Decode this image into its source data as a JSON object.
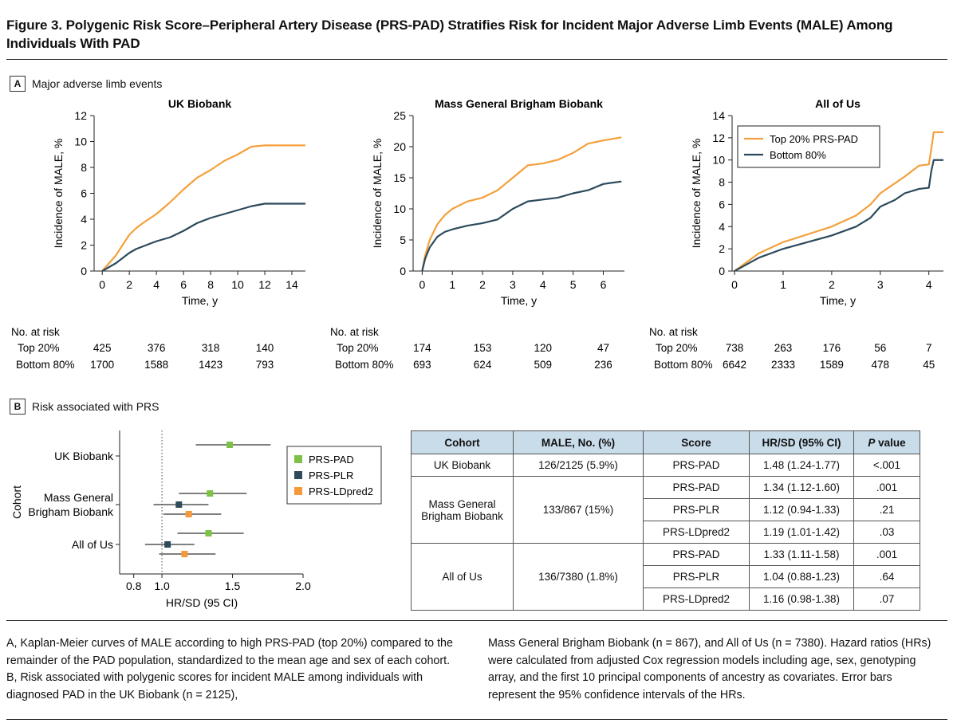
{
  "figure_title": "Figure 3. Polygenic Risk Score–Peripheral Artery Disease (PRS-PAD) Stratifies Risk for Incident Major Adverse Limb Events (MALE) Among Individuals With PAD",
  "panel_a": {
    "letter": "A",
    "title": "Major adverse limb events"
  },
  "panel_b": {
    "letter": "B",
    "title": "Risk associated with PRS"
  },
  "colors": {
    "top": "#f4a03c",
    "bottom": "#2c4a5c",
    "prs_pad": "#7dc246",
    "prs_plr": "#2f4b5b",
    "prs_ldpred2": "#f4983a",
    "table_header": "#c9dcea"
  },
  "chart_data": [
    {
      "type": "line",
      "title": "UK Biobank",
      "xlabel": "Time, y",
      "ylabel": "Incidence of MALE, %",
      "xlim": [
        -0.6,
        15
      ],
      "ylim": [
        0,
        12
      ],
      "xticks": [
        0,
        2,
        4,
        6,
        8,
        10,
        12,
        14
      ],
      "yticks": [
        0,
        2,
        4,
        6,
        8,
        10,
        12
      ],
      "legend": "",
      "series": [
        {
          "name": "Top 20% PRS-PAD",
          "x": [
            0,
            0.5,
            1,
            1.5,
            2,
            2.5,
            3,
            4,
            5,
            6,
            7,
            8,
            9,
            10,
            11,
            12,
            15
          ],
          "y": [
            0,
            0.6,
            1.2,
            2.0,
            2.8,
            3.3,
            3.7,
            4.4,
            5.3,
            6.3,
            7.2,
            7.8,
            8.5,
            9.0,
            9.6,
            9.7,
            9.7
          ]
        },
        {
          "name": "Bottom 80%",
          "x": [
            0,
            0.5,
            1,
            1.5,
            2,
            2.5,
            3,
            4,
            5,
            6,
            7,
            8,
            9,
            10,
            11,
            12,
            15
          ],
          "y": [
            0,
            0.3,
            0.6,
            1.0,
            1.4,
            1.7,
            1.9,
            2.3,
            2.6,
            3.1,
            3.7,
            4.1,
            4.4,
            4.7,
            5.0,
            5.2,
            5.2
          ]
        }
      ],
      "risk_table": {
        "header": "No. at risk",
        "rows": [
          {
            "label": "Top 20%",
            "values": [
              "425",
              "376",
              "318",
              "140"
            ]
          },
          {
            "label": "Bottom 80%",
            "values": [
              "1700",
              "1588",
              "1423",
              "793"
            ]
          }
        ],
        "at_times": [
          0,
          4,
          8,
          12
        ]
      }
    },
    {
      "type": "line",
      "title": "Mass General Brigham Biobank",
      "xlabel": "Time, y",
      "ylabel": "Incidence of MALE, %",
      "xlim": [
        -0.3,
        6.7
      ],
      "ylim": [
        0,
        25
      ],
      "xticks": [
        0,
        1,
        2,
        3,
        4,
        5,
        6
      ],
      "yticks": [
        0,
        5,
        10,
        15,
        20,
        25
      ],
      "legend": "",
      "series": [
        {
          "name": "Top 20% PRS-PAD",
          "x": [
            0,
            0.1,
            0.25,
            0.5,
            0.75,
            1,
            1.5,
            2,
            2.5,
            3,
            3.5,
            4,
            4.5,
            5,
            5.5,
            6,
            6.6
          ],
          "y": [
            0,
            2.5,
            5,
            7.5,
            9,
            10,
            11.2,
            11.8,
            13,
            15,
            17,
            17.3,
            17.9,
            19,
            20.5,
            21,
            21.5
          ]
        },
        {
          "name": "Bottom 80%",
          "x": [
            0,
            0.1,
            0.25,
            0.5,
            0.75,
            1,
            1.5,
            2,
            2.5,
            3,
            3.5,
            4,
            4.5,
            5,
            5.5,
            6,
            6.6
          ],
          "y": [
            0,
            2,
            3.8,
            5.5,
            6.3,
            6.7,
            7.3,
            7.7,
            8.3,
            10,
            11.2,
            11.5,
            11.8,
            12.5,
            13,
            14,
            14.4
          ]
        }
      ],
      "risk_table": {
        "header": "No. at risk",
        "rows": [
          {
            "label": "Top 20%",
            "values": [
              "174",
              "153",
              "120",
              "47"
            ]
          },
          {
            "label": "Bottom 80%",
            "values": [
              "693",
              "624",
              "509",
              "236"
            ]
          }
        ],
        "at_times": [
          0,
          2,
          4,
          6
        ]
      }
    },
    {
      "type": "line",
      "title": "All of Us",
      "xlabel": "Time, y",
      "ylabel": "Incidence of MALE, %",
      "xlim": [
        -0.05,
        4.3
      ],
      "ylim": [
        0,
        14
      ],
      "xticks": [
        0,
        1,
        2,
        3,
        4
      ],
      "yticks": [
        0,
        2,
        4,
        6,
        8,
        10,
        12,
        14
      ],
      "legend": "top-left",
      "series": [
        {
          "name": "Top 20% PRS-PAD",
          "x": [
            0,
            0.5,
            1,
            1.5,
            2,
            2.5,
            2.8,
            3,
            3.3,
            3.5,
            3.8,
            4.0,
            4.05,
            4.1,
            4.3
          ],
          "y": [
            0,
            1.6,
            2.6,
            3.3,
            4.0,
            5.0,
            6.0,
            7.0,
            7.9,
            8.5,
            9.5,
            9.6,
            11,
            12.5,
            12.5
          ]
        },
        {
          "name": "Bottom 80%",
          "x": [
            0,
            0.5,
            1,
            1.5,
            2,
            2.5,
            2.8,
            3,
            3.3,
            3.5,
            3.8,
            4.0,
            4.05,
            4.1,
            4.3
          ],
          "y": [
            0,
            1.2,
            2.0,
            2.6,
            3.2,
            4.0,
            4.8,
            5.8,
            6.4,
            7.0,
            7.4,
            7.5,
            9,
            10,
            10
          ]
        }
      ],
      "risk_table": {
        "header": "No. at risk",
        "rows": [
          {
            "label": "Top 20%",
            "values": [
              "738",
              "263",
              "176",
              "56",
              "7"
            ]
          },
          {
            "label": "Bottom 80%",
            "values": [
              "6642",
              "2333",
              "1589",
              "478",
              "45"
            ]
          }
        ],
        "at_times": [
          0,
          1,
          2,
          3,
          4
        ]
      }
    },
    {
      "type": "scatter",
      "subtype": "forest",
      "title": "",
      "xlabel": "HR/SD (95 CI)",
      "ylabel": "Cohort",
      "xlim": [
        0.7,
        2.0
      ],
      "xticks": [
        0.8,
        1.0,
        1.5,
        2.0
      ],
      "tick_labels": [
        "0.8",
        "1.0",
        "1.5",
        "2.0"
      ],
      "reference_line": 1.0,
      "legend": "right",
      "categories": [
        "UK Biobank",
        "Mass General Brigham Biobank",
        "All of Us"
      ],
      "category_labels": [
        [
          "UK Biobank"
        ],
        [
          "Mass General",
          "Brigham Biobank"
        ],
        [
          "All of Us"
        ]
      ],
      "series": [
        {
          "name": "PRS-PAD",
          "points": [
            {
              "cohort": 0,
              "hr": 1.48,
              "lo": 1.24,
              "hi": 1.77
            },
            {
              "cohort": 1,
              "hr": 1.34,
              "lo": 1.12,
              "hi": 1.6
            },
            {
              "cohort": 2,
              "hr": 1.33,
              "lo": 1.11,
              "hi": 1.58
            }
          ]
        },
        {
          "name": "PRS-PLR",
          "points": [
            {
              "cohort": 1,
              "hr": 1.12,
              "lo": 0.94,
              "hi": 1.33
            },
            {
              "cohort": 2,
              "hr": 1.04,
              "lo": 0.88,
              "hi": 1.23
            }
          ]
        },
        {
          "name": "PRS-LDpred2",
          "points": [
            {
              "cohort": 1,
              "hr": 1.19,
              "lo": 1.01,
              "hi": 1.42
            },
            {
              "cohort": 2,
              "hr": 1.16,
              "lo": 0.98,
              "hi": 1.38
            }
          ]
        }
      ]
    }
  ],
  "table": {
    "headers": {
      "cohort": "Cohort",
      "male": "MALE, No. (%)",
      "score": "Score",
      "hr": "HR/SD (95% CI)",
      "p_italic": "P",
      "p_rest": " value"
    },
    "groups": [
      {
        "cohort": "UK Biobank",
        "male": "126/2125 (5.9%)",
        "rows": [
          {
            "score": "PRS-PAD",
            "hr": "1.48 (1.24-1.77)",
            "p": "<.001"
          }
        ]
      },
      {
        "cohort": "Mass General Brigham Biobank",
        "male": "133/867 (15%)",
        "rows": [
          {
            "score": "PRS-PAD",
            "hr": "1.34 (1.12-1.60)",
            "p": ".001"
          },
          {
            "score": "PRS-PLR",
            "hr": "1.12 (0.94-1.33)",
            "p": ".21"
          },
          {
            "score": "PRS-LDpred2",
            "hr": "1.19 (1.01-1.42)",
            "p": ".03"
          }
        ]
      },
      {
        "cohort": "All of Us",
        "male": "136/7380 (1.8%)",
        "rows": [
          {
            "score": "PRS-PAD",
            "hr": "1.33 (1.11-1.58)",
            "p": ".001"
          },
          {
            "score": "PRS-PLR",
            "hr": "1.04 (0.88-1.23)",
            "p": ".64"
          },
          {
            "score": "PRS-LDpred2",
            "hr": "1.16 (0.98-1.38)",
            "p": ".07"
          }
        ]
      }
    ]
  },
  "caption": {
    "left": "A, Kaplan-Meier curves of MALE according to high PRS-PAD (top 20%) compared to the remainder of the PAD population, standardized to the mean age and sex of each cohort. B, Risk associated with polygenic scores for incident MALE among individuals with diagnosed PAD in the UK Biobank (n = 2125),",
    "right": "Mass General Brigham Biobank (n = 867), and All of Us (n = 7380). Hazard ratios (HRs) were calculated from adjusted Cox regression models including age, sex, genotyping array, and the first 10 principal components of ancestry as covariates. Error bars represent the 95% confidence intervals of the HRs."
  }
}
